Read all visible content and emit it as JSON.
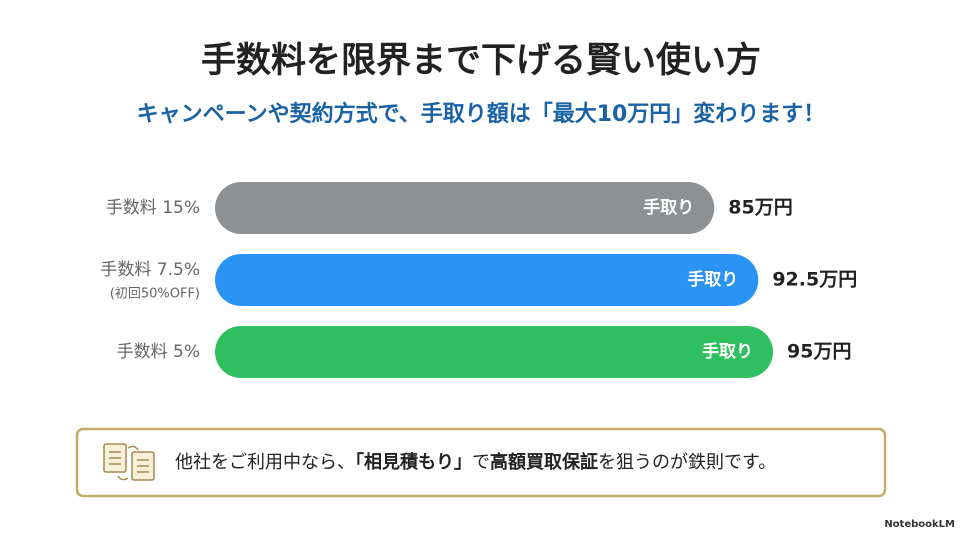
{
  "chart_data": {
    "type": "hbar",
    "title": "手数料を限界まで下げる賢い使い方",
    "subtitle": "キャンペーンや契約方式で、手取り額は「最大10万円」変わります！",
    "categories": [
      "手数料 15%",
      "手数料 7.5%",
      "手数料 5%"
    ],
    "category_notes": [
      null,
      "(初回50%OFF)",
      null
    ],
    "values": [
      85,
      92.5,
      95
    ],
    "value_labels": [
      "85万円",
      "92.5万円",
      "95万円"
    ],
    "colors": [
      "#8e9193",
      "#2b93f4",
      "#2fbf60"
    ],
    "bar_label": "手取り"
  },
  "note": {
    "segments": [
      {
        "text": "他社をご利用中なら、",
        "bold": false
      },
      {
        "text": "「相見積もり」",
        "bold": true
      },
      {
        "text": "で",
        "bold": false
      },
      {
        "text": "高額買取保証",
        "bold": true
      },
      {
        "text": "を狙うのが鉄則です。",
        "bold": false
      }
    ]
  },
  "watermark": "NotebookLM"
}
